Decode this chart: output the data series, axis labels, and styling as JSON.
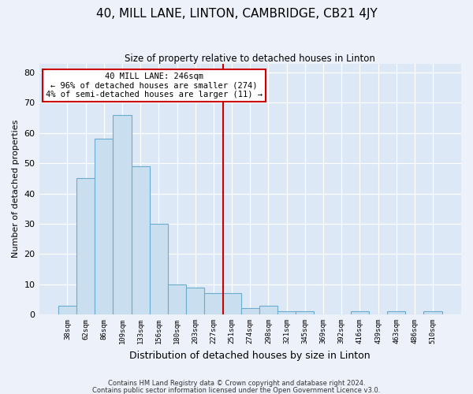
{
  "title": "40, MILL LANE, LINTON, CAMBRIDGE, CB21 4JY",
  "subtitle": "Size of property relative to detached houses in Linton",
  "xlabel": "Distribution of detached houses by size in Linton",
  "ylabel": "Number of detached properties",
  "bar_labels": [
    "38sqm",
    "62sqm",
    "86sqm",
    "109sqm",
    "133sqm",
    "156sqm",
    "180sqm",
    "203sqm",
    "227sqm",
    "251sqm",
    "274sqm",
    "298sqm",
    "321sqm",
    "345sqm",
    "369sqm",
    "392sqm",
    "416sqm",
    "439sqm",
    "463sqm",
    "486sqm",
    "510sqm"
  ],
  "bar_values": [
    3,
    45,
    58,
    66,
    49,
    30,
    10,
    9,
    7,
    7,
    2,
    3,
    1,
    1,
    0,
    0,
    1,
    0,
    1,
    0,
    1
  ],
  "bar_color": "#c9dff0",
  "bar_edge_color": "#6aabcf",
  "vline_x": 9.0,
  "vline_color": "#cc0000",
  "annotation_text": "40 MILL LANE: 246sqm\n← 96% of detached houses are smaller (274)\n4% of semi-detached houses are larger (11) →",
  "annotation_box_color": "#ffffff",
  "annotation_box_edge": "#cc0000",
  "ylim": [
    0,
    83
  ],
  "yticks": [
    0,
    10,
    20,
    30,
    40,
    50,
    60,
    70,
    80
  ],
  "footer_line1": "Contains HM Land Registry data © Crown copyright and database right 2024.",
  "footer_line2": "Contains public sector information licensed under the Open Government Licence v3.0.",
  "bg_color": "#edf2fa",
  "plot_bg_color": "#dce8f5"
}
